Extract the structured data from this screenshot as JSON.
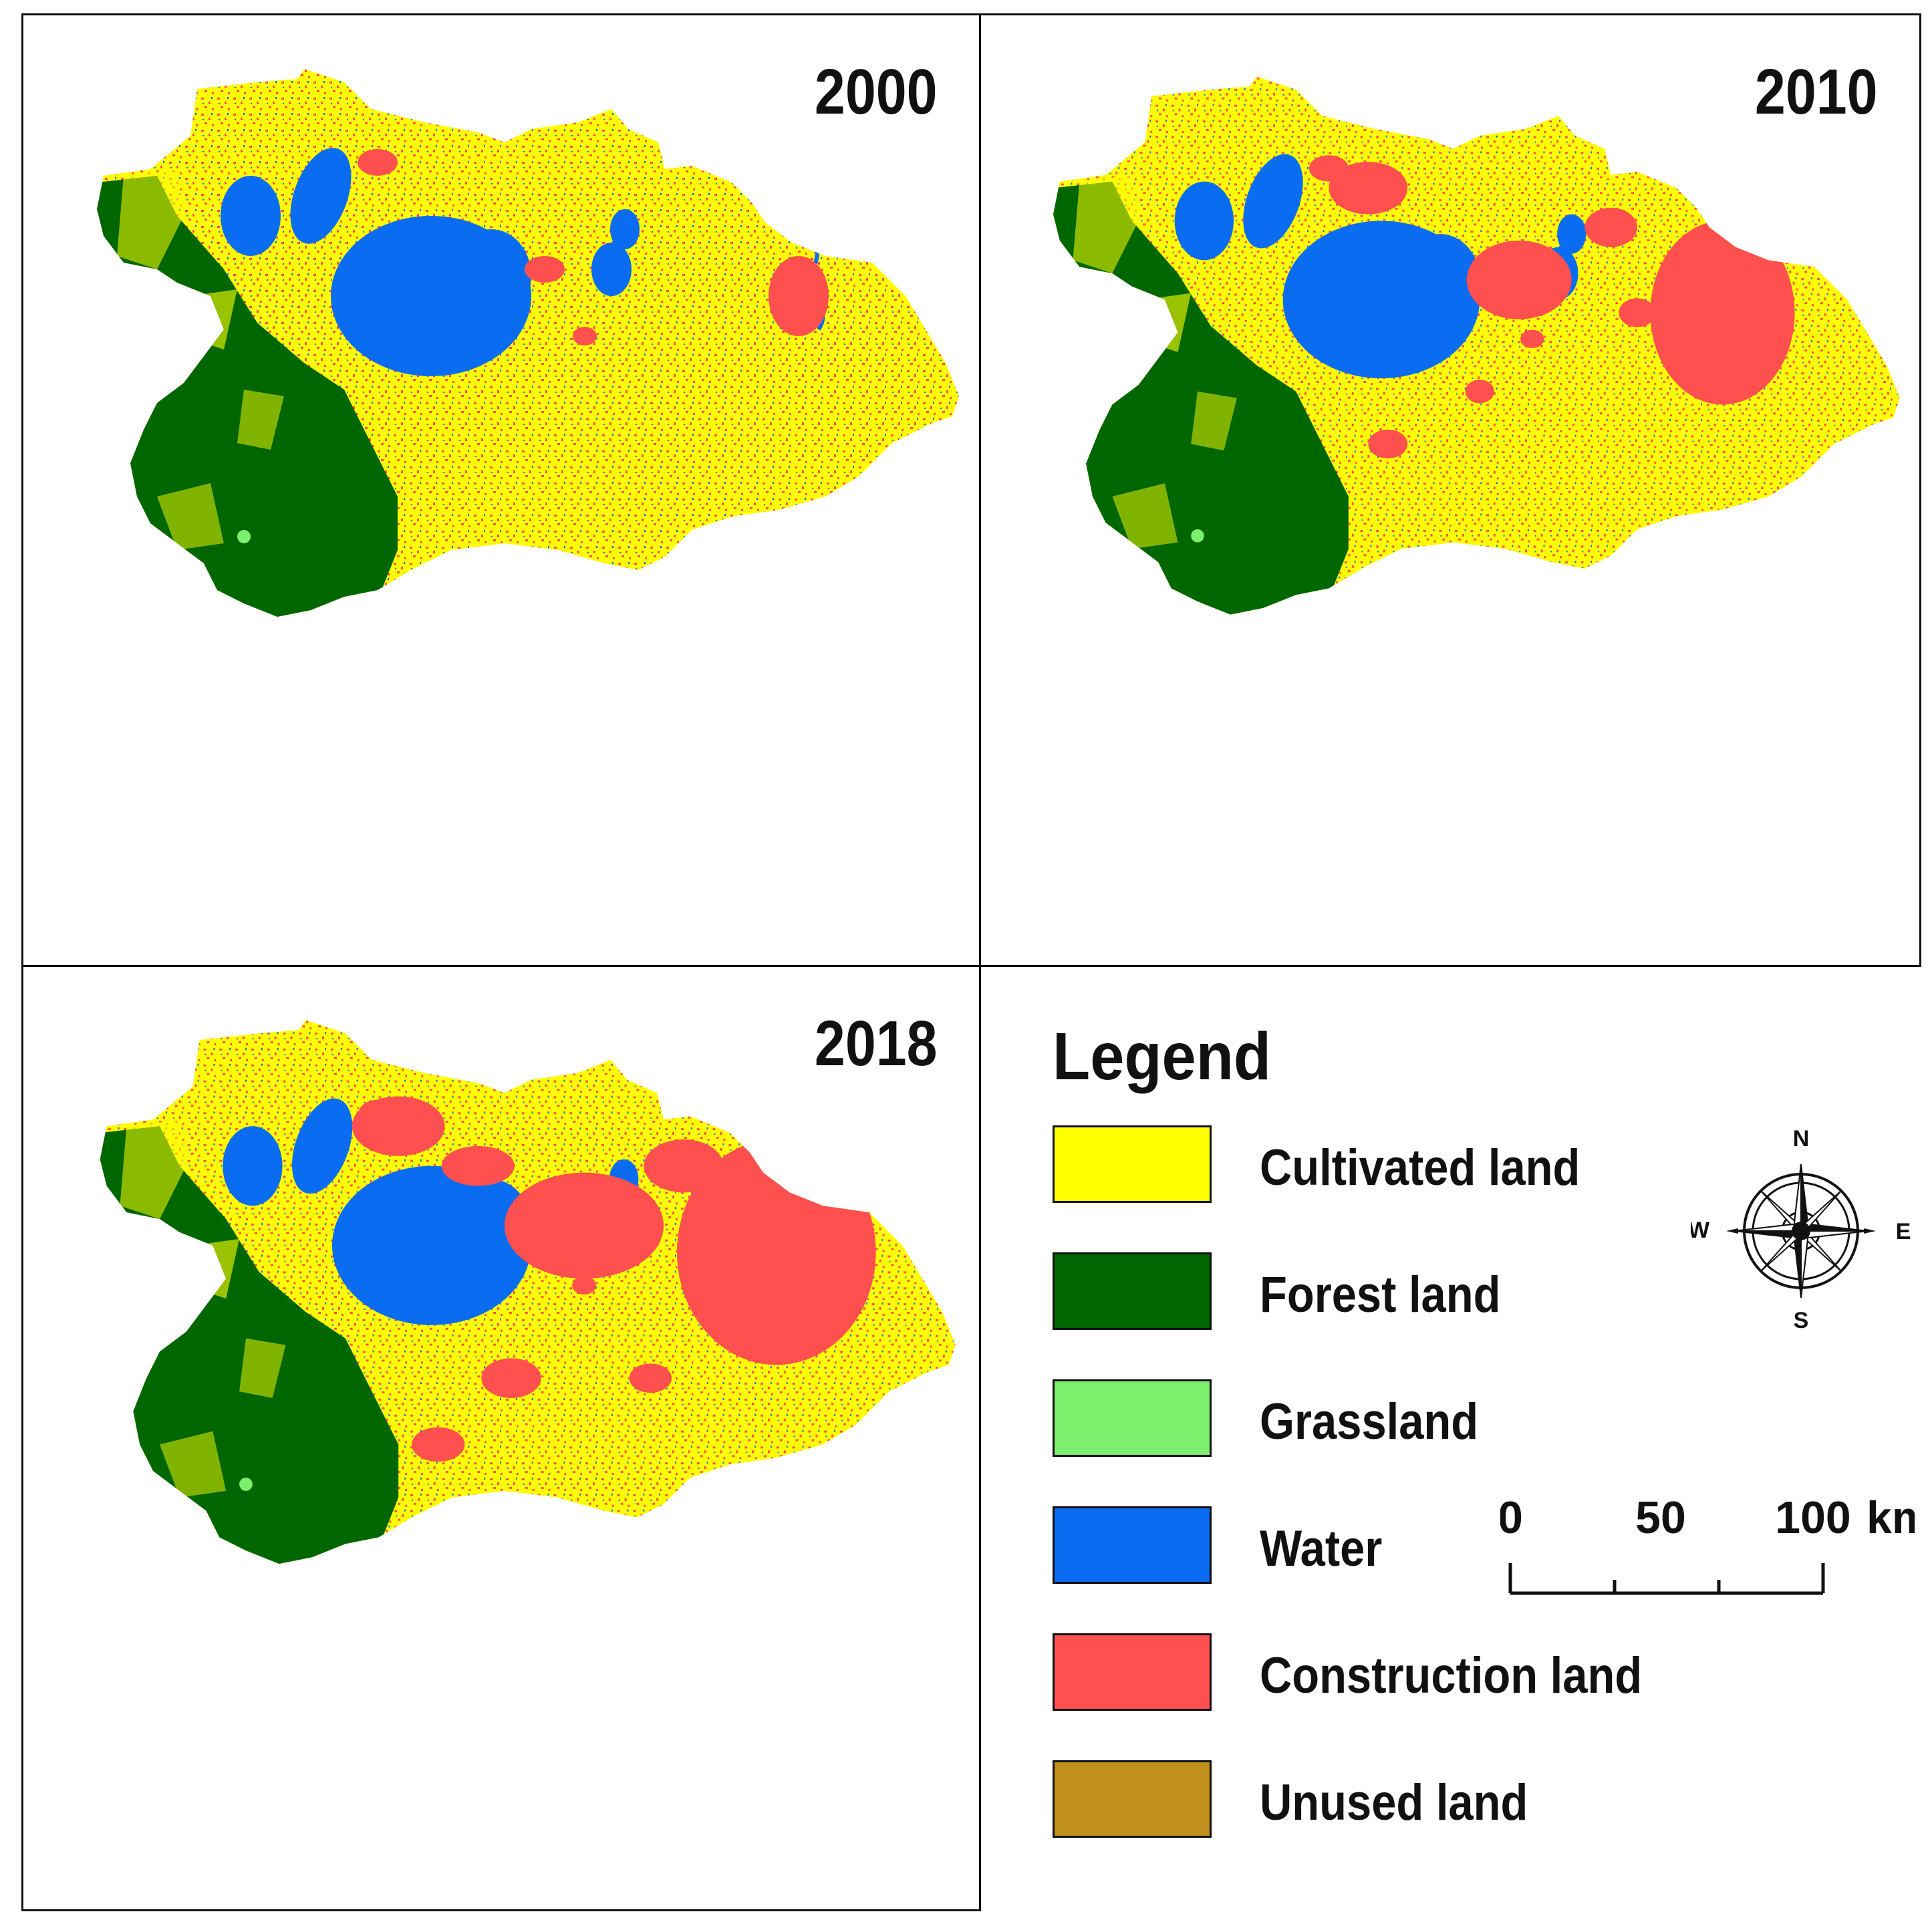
{
  "panels": [
    {
      "year": "2000"
    },
    {
      "year": "2010"
    },
    {
      "year": "2018"
    }
  ],
  "legend": {
    "title": "Legend",
    "items": [
      {
        "label": "Cultivated land",
        "color": "#ffff00"
      },
      {
        "label": "Forest land",
        "color": "#006600"
      },
      {
        "label": "Grassland",
        "color": "#7cf06c"
      },
      {
        "label": "Water",
        "color": "#0a6cf0"
      },
      {
        "label": "Construction land",
        "color": "#ff5050"
      },
      {
        "label": "Unused land",
        "color": "#c0901c"
      }
    ]
  },
  "compass": {
    "north": "N",
    "south": "S",
    "east": "E",
    "west": "W"
  },
  "scale_bar": {
    "ticks": [
      "0",
      "50",
      "100"
    ],
    "unit": "km"
  }
}
